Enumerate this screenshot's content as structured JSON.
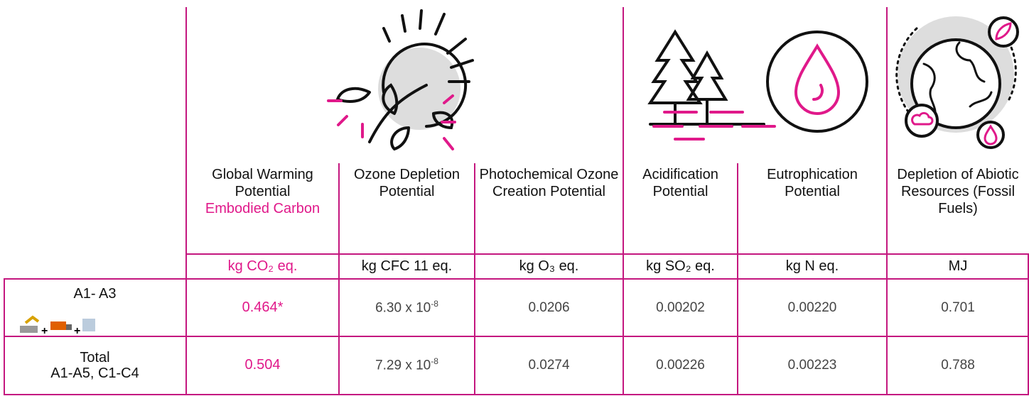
{
  "columns": [
    {
      "name": "Global Warming Potential",
      "highlight": "Embodied Carbon",
      "unit": "kg CO₂ eq."
    },
    {
      "name": "Ozone Depletion Potential",
      "unit": "kg CFC 11 eq."
    },
    {
      "name": "Photochemical Ozone Creation Potential",
      "unit": "kg O₃ eq."
    },
    {
      "name": "Acidification Potential",
      "unit": "kg SO₂ eq."
    },
    {
      "name": "Eutrophication Potential",
      "unit": "kg N eq."
    },
    {
      "name": "Depletion of Abiotic Resources (Fossil Fuels)",
      "unit": "MJ"
    }
  ],
  "rows": [
    {
      "label": [
        "A1- A3"
      ],
      "values": [
        "0.464*",
        {
          "base": "6.30 x 10",
          "exponent": "-8"
        },
        "0.0206",
        "0.00202",
        "0.00220",
        "0.701"
      ]
    },
    {
      "label": [
        "Total",
        "A1-A5, C1-C4"
      ],
      "values": [
        "0.504",
        {
          "base": "7.29 x 10",
          "exponent": "-8"
        },
        "0.0274",
        "0.00226",
        "0.00223",
        "0.788"
      ]
    }
  ]
}
